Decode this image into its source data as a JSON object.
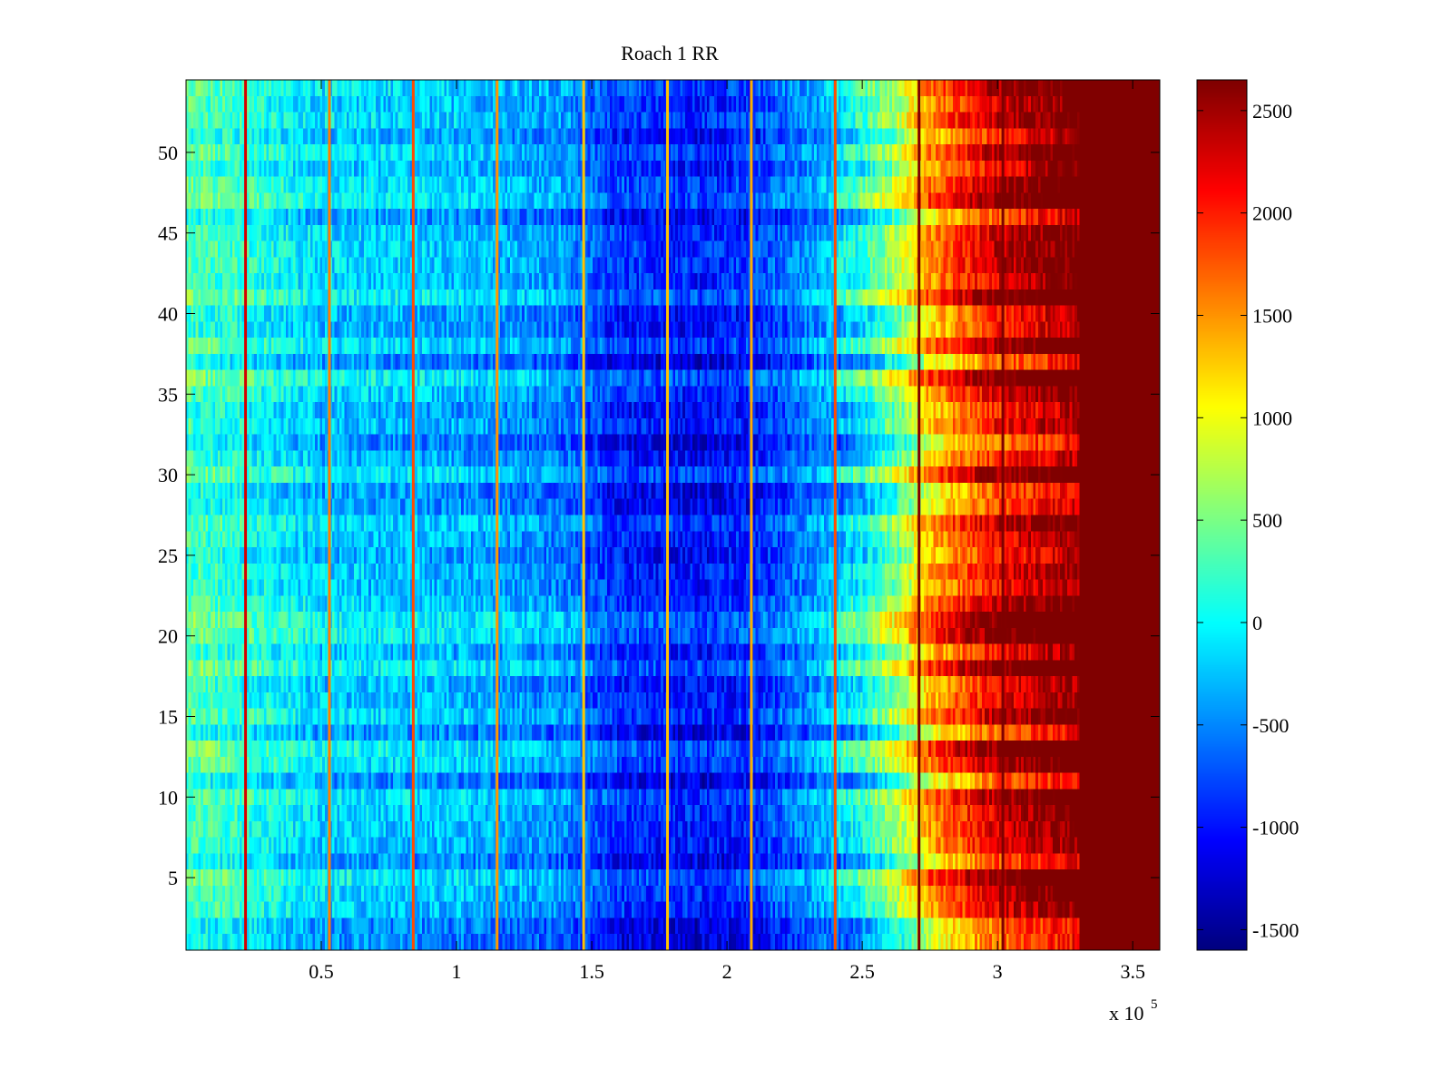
{
  "chart_data": {
    "type": "heatmap",
    "title": "Roach 1 RR",
    "xlabel": "",
    "ylabel": "",
    "x_multiplier_label": "x 10",
    "x_multiplier_exponent": "5",
    "xlim": [
      0,
      3.6
    ],
    "ylim": [
      0.5,
      54.5
    ],
    "rows": 54,
    "columns": 400,
    "x_ticks": [
      {
        "value": 0.5,
        "label": "0.5"
      },
      {
        "value": 1,
        "label": "1"
      },
      {
        "value": 1.5,
        "label": "1.5"
      },
      {
        "value": 2,
        "label": "2"
      },
      {
        "value": 2.5,
        "label": "2.5"
      },
      {
        "value": 3,
        "label": "3"
      },
      {
        "value": 3.5,
        "label": "3.5"
      }
    ],
    "y_ticks": [
      {
        "value": 5,
        "label": "5"
      },
      {
        "value": 10,
        "label": "10"
      },
      {
        "value": 15,
        "label": "15"
      },
      {
        "value": 20,
        "label": "20"
      },
      {
        "value": 25,
        "label": "25"
      },
      {
        "value": 30,
        "label": "30"
      },
      {
        "value": 35,
        "label": "35"
      },
      {
        "value": 40,
        "label": "40"
      },
      {
        "value": 45,
        "label": "45"
      },
      {
        "value": 50,
        "label": "50"
      }
    ],
    "colorbar": {
      "colormap": "jet",
      "range": [
        -1600,
        2650
      ],
      "ticks": [
        {
          "value": -1500,
          "label": "-1500"
        },
        {
          "value": -1000,
          "label": "-1000"
        },
        {
          "value": -500,
          "label": "-500"
        },
        {
          "value": 0,
          "label": "0"
        },
        {
          "value": 500,
          "label": "500"
        },
        {
          "value": 1000,
          "label": "1000"
        },
        {
          "value": 1500,
          "label": "1500"
        },
        {
          "value": 2000,
          "label": "2000"
        },
        {
          "value": 2500,
          "label": "2500"
        }
      ]
    },
    "column_trend": [
      {
        "x": 0.0,
        "value": 300
      },
      {
        "x": 0.2,
        "value": 150
      },
      {
        "x": 0.5,
        "value": -200
      },
      {
        "x": 1.0,
        "value": -300
      },
      {
        "x": 1.4,
        "value": -500
      },
      {
        "x": 1.6,
        "value": -900
      },
      {
        "x": 1.9,
        "value": -1000
      },
      {
        "x": 2.1,
        "value": -900
      },
      {
        "x": 2.3,
        "value": -500
      },
      {
        "x": 2.5,
        "value": 0
      },
      {
        "x": 2.65,
        "value": 700
      },
      {
        "x": 2.75,
        "value": 1400
      },
      {
        "x": 2.9,
        "value": 1900
      },
      {
        "x": 3.0,
        "value": 2200
      },
      {
        "x": 3.2,
        "value": 2500
      },
      {
        "x": 3.3,
        "value": 2650
      },
      {
        "x": 3.6,
        "value": 2650
      }
    ],
    "stripes": [
      {
        "x": 0.22,
        "value": 2300
      },
      {
        "x": 0.53,
        "value": 1600
      },
      {
        "x": 0.84,
        "value": 1800
      },
      {
        "x": 1.15,
        "value": 1500
      },
      {
        "x": 1.47,
        "value": 1300
      },
      {
        "x": 1.78,
        "value": 1300
      },
      {
        "x": 2.09,
        "value": 1400
      },
      {
        "x": 2.4,
        "value": 1800
      },
      {
        "x": 2.71,
        "value": 2650
      },
      {
        "x": 3.02,
        "value": 2650
      }
    ]
  }
}
